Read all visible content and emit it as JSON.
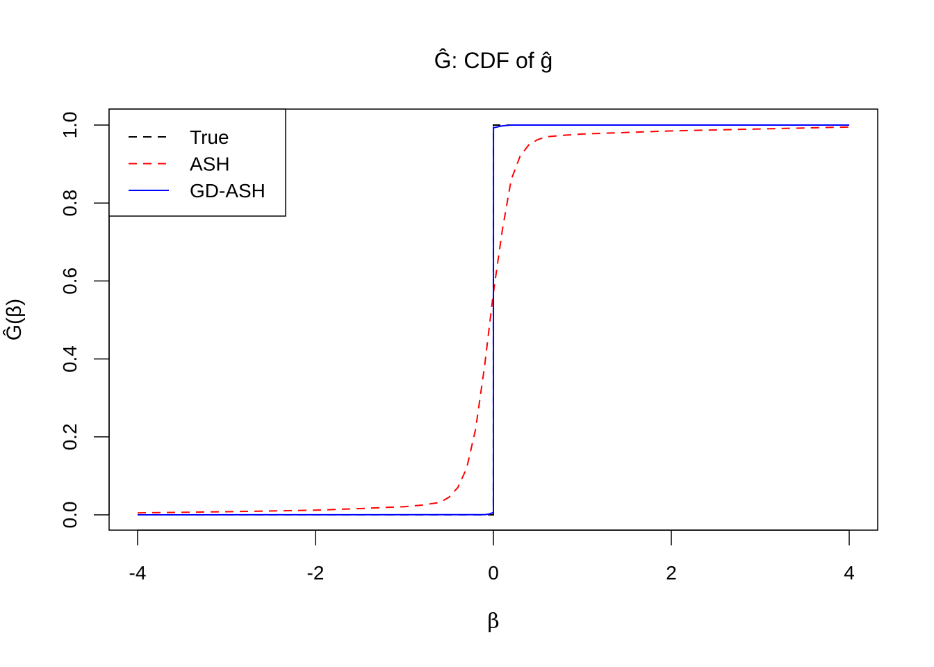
{
  "chart_data": {
    "type": "line",
    "title": "Ĝ: CDF of ĝ",
    "xlabel": "β",
    "ylabel": "Ĝ(β)",
    "xlim": [
      -4,
      4
    ],
    "ylim": [
      0,
      1
    ],
    "xticks": [
      -4,
      -2,
      0,
      2,
      4
    ],
    "xtick_labels": [
      "-4",
      "-2",
      "0",
      "2",
      "4"
    ],
    "yticks": [
      0,
      0.2,
      0.4,
      0.6,
      0.8,
      1.0
    ],
    "ytick_labels": [
      "0.0",
      "0.2",
      "0.4",
      "0.6",
      "0.8",
      "1.0"
    ],
    "grid": false,
    "legend_position": "top-left",
    "series": [
      {
        "name": "True",
        "color": "#000000",
        "dash": "dashed",
        "x": [
          -4,
          -0.001,
          0,
          4
        ],
        "y": [
          0,
          0,
          1,
          1
        ]
      },
      {
        "name": "ASH",
        "color": "#ff0000",
        "dash": "dashed",
        "x": [
          -4,
          -3,
          -2,
          -1.5,
          -1,
          -0.8,
          -0.6,
          -0.5,
          -0.4,
          -0.3,
          -0.2,
          -0.1,
          0,
          0.1,
          0.2,
          0.3,
          0.4,
          0.5,
          0.6,
          0.8,
          1,
          2,
          3,
          4
        ],
        "y": [
          0.005,
          0.008,
          0.012,
          0.016,
          0.021,
          0.025,
          0.032,
          0.045,
          0.07,
          0.12,
          0.22,
          0.38,
          0.57,
          0.73,
          0.86,
          0.92,
          0.95,
          0.963,
          0.97,
          0.974,
          0.977,
          0.985,
          0.99,
          0.995
        ]
      },
      {
        "name": "GD-ASH",
        "color": "#0000ff",
        "dash": "solid",
        "x": [
          -4,
          -0.1,
          -0.05,
          0,
          0.001,
          0.1,
          0.2,
          4
        ],
        "y": [
          0,
          0.0005,
          0.002,
          0.006,
          0.993,
          0.998,
          1,
          1
        ]
      }
    ]
  }
}
